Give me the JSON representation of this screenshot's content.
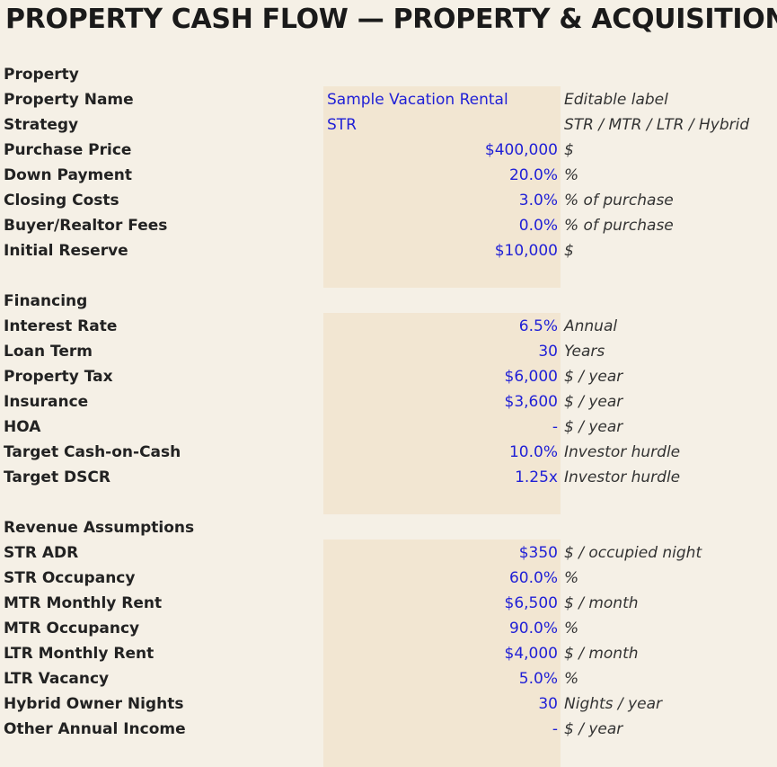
{
  "title": "PROPERTY CASH FLOW — PROPERTY & ACQUISITION I",
  "sections": {
    "property": {
      "header": "Property",
      "rows": [
        {
          "label": "Property Name",
          "value": "Sample Vacation Rental",
          "note": "Editable label"
        },
        {
          "label": "Strategy",
          "value": "STR",
          "note": "STR / MTR / LTR / Hybrid"
        },
        {
          "label": "Purchase Price",
          "value": "$400,000",
          "note": "$"
        },
        {
          "label": "Down Payment",
          "value": "20.0%",
          "note": "%"
        },
        {
          "label": "Closing Costs",
          "value": "3.0%",
          "note": "% of purchase"
        },
        {
          "label": "Buyer/Realtor Fees",
          "value": "0.0%",
          "note": "% of purchase"
        },
        {
          "label": "Initial Reserve",
          "value": "$10,000",
          "note": "$"
        }
      ]
    },
    "financing": {
      "header": "Financing",
      "rows": [
        {
          "label": "Interest Rate",
          "value": "6.5%",
          "note": "Annual"
        },
        {
          "label": "Loan Term",
          "value": "30",
          "note": "Years"
        },
        {
          "label": "Property Tax",
          "value": "$6,000",
          "note": "$ / year"
        },
        {
          "label": "Insurance",
          "value": "$3,600",
          "note": "$ / year"
        },
        {
          "label": "HOA",
          "value": "-",
          "note": "$ / year"
        },
        {
          "label": "Target Cash-on-Cash",
          "value": "10.0%",
          "note": "Investor hurdle"
        },
        {
          "label": "Target DSCR",
          "value": "1.25x",
          "note": "Investor hurdle"
        }
      ]
    },
    "revenue": {
      "header": "Revenue Assumptions",
      "rows": [
        {
          "label": "STR ADR",
          "value": "$350",
          "note": "$ / occupied night"
        },
        {
          "label": "STR Occupancy",
          "value": "60.0%",
          "note": "%"
        },
        {
          "label": "MTR Monthly Rent",
          "value": "$6,500",
          "note": "$ / month"
        },
        {
          "label": "MTR Occupancy",
          "value": "90.0%",
          "note": "%"
        },
        {
          "label": "LTR Monthly Rent",
          "value": "$4,000",
          "note": "$ / month"
        },
        {
          "label": "LTR Vacancy",
          "value": "5.0%",
          "note": "%"
        },
        {
          "label": "Hybrid Owner Nights",
          "value": "30",
          "note": "Nights / year"
        },
        {
          "label": "Other Annual Income",
          "value": "-",
          "note": "$ / year"
        }
      ]
    }
  },
  "colors": {
    "background": "#f5f0e6",
    "input_band": "#f2e6d2",
    "input_text": "#1f1fd6"
  }
}
